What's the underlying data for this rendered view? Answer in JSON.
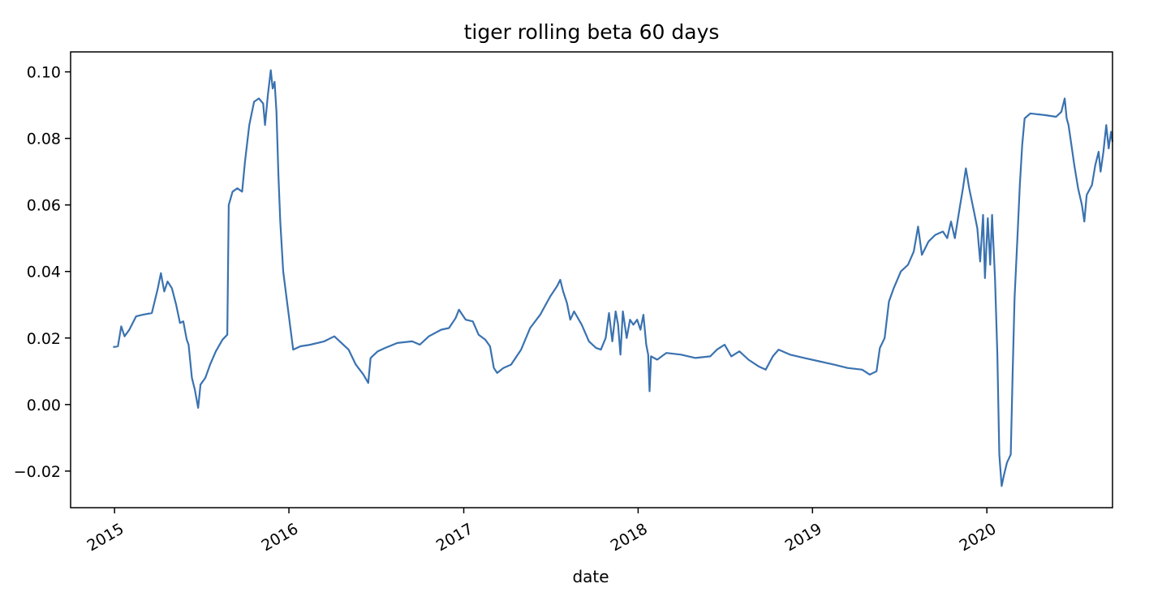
{
  "chart_data": {
    "type": "line",
    "title": "tiger rolling beta 60 days",
    "xlabel": "date",
    "ylabel": "",
    "x_type": "date",
    "xlim": [
      "2014-10-01",
      "2020-09-20"
    ],
    "ylim": [
      -0.031,
      0.106
    ],
    "x_ticks": [
      {
        "date": "2015-01-01",
        "label": "2015"
      },
      {
        "date": "2016-01-01",
        "label": "2016"
      },
      {
        "date": "2017-01-01",
        "label": "2017"
      },
      {
        "date": "2018-01-01",
        "label": "2018"
      },
      {
        "date": "2019-01-01",
        "label": "2019"
      },
      {
        "date": "2020-01-01",
        "label": "2020"
      }
    ],
    "y_ticks": [
      {
        "value": 0.1,
        "label": "0.10"
      },
      {
        "value": 0.08,
        "label": "0.08"
      },
      {
        "value": 0.06,
        "label": "0.06"
      },
      {
        "value": 0.04,
        "label": "0.04"
      },
      {
        "value": 0.02,
        "label": "0.02"
      },
      {
        "value": 0.0,
        "label": "0.00"
      },
      {
        "value": -0.02,
        "label": "−0.02"
      }
    ],
    "grid": false,
    "legend": "none",
    "series": [
      {
        "color": "#3a72b0",
        "points": [
          [
            "2014-12-29",
            0.0173
          ],
          [
            "2015-01-08",
            0.0175
          ],
          [
            "2015-01-15",
            0.0235
          ],
          [
            "2015-01-22",
            0.0205
          ],
          [
            "2015-02-01",
            0.0225
          ],
          [
            "2015-02-15",
            0.0265
          ],
          [
            "2015-03-01",
            0.027
          ],
          [
            "2015-03-20",
            0.0275
          ],
          [
            "2015-04-01",
            0.0345
          ],
          [
            "2015-04-08",
            0.0395
          ],
          [
            "2015-04-15",
            0.034
          ],
          [
            "2015-04-22",
            0.037
          ],
          [
            "2015-05-01",
            0.035
          ],
          [
            "2015-05-10",
            0.03
          ],
          [
            "2015-05-18",
            0.0245
          ],
          [
            "2015-05-25",
            0.025
          ],
          [
            "2015-06-01",
            0.0195
          ],
          [
            "2015-06-05",
            0.018
          ],
          [
            "2015-06-12",
            0.008
          ],
          [
            "2015-06-18",
            0.0045
          ],
          [
            "2015-06-25",
            -0.001
          ],
          [
            "2015-06-30",
            0.006
          ],
          [
            "2015-07-10",
            0.008
          ],
          [
            "2015-07-20",
            0.012
          ],
          [
            "2015-08-01",
            0.016
          ],
          [
            "2015-08-15",
            0.0195
          ],
          [
            "2015-08-25",
            0.021
          ],
          [
            "2015-08-28",
            0.06
          ],
          [
            "2015-09-05",
            0.064
          ],
          [
            "2015-09-15",
            0.065
          ],
          [
            "2015-09-25",
            0.064
          ],
          [
            "2015-10-01",
            0.073
          ],
          [
            "2015-10-10",
            0.084
          ],
          [
            "2015-10-20",
            0.091
          ],
          [
            "2015-10-30",
            0.092
          ],
          [
            "2015-11-08",
            0.0905
          ],
          [
            "2015-11-12",
            0.084
          ],
          [
            "2015-11-18",
            0.093
          ],
          [
            "2015-11-24",
            0.1005
          ],
          [
            "2015-11-28",
            0.095
          ],
          [
            "2015-12-02",
            0.097
          ],
          [
            "2015-12-06",
            0.088
          ],
          [
            "2015-12-10",
            0.069
          ],
          [
            "2015-12-14",
            0.055
          ],
          [
            "2015-12-20",
            0.04
          ],
          [
            "2015-12-28",
            0.031
          ],
          [
            "2016-01-05",
            0.022
          ],
          [
            "2016-01-10",
            0.0165
          ],
          [
            "2016-01-25",
            0.0175
          ],
          [
            "2016-02-15",
            0.018
          ],
          [
            "2016-03-15",
            0.019
          ],
          [
            "2016-04-05",
            0.0205
          ],
          [
            "2016-04-20",
            0.0185
          ],
          [
            "2016-05-05",
            0.0165
          ],
          [
            "2016-05-20",
            0.012
          ],
          [
            "2016-06-05",
            0.009
          ],
          [
            "2016-06-15",
            0.0065
          ],
          [
            "2016-06-20",
            0.014
          ],
          [
            "2016-07-05",
            0.016
          ],
          [
            "2016-07-20",
            0.017
          ],
          [
            "2016-08-15",
            0.0185
          ],
          [
            "2016-09-15",
            0.019
          ],
          [
            "2016-10-01",
            0.018
          ],
          [
            "2016-10-20",
            0.0205
          ],
          [
            "2016-11-15",
            0.0225
          ],
          [
            "2016-12-01",
            0.023
          ],
          [
            "2016-12-15",
            0.026
          ],
          [
            "2016-12-22",
            0.0285
          ],
          [
            "2017-01-05",
            0.0255
          ],
          [
            "2017-01-20",
            0.025
          ],
          [
            "2017-02-01",
            0.021
          ],
          [
            "2017-02-15",
            0.0195
          ],
          [
            "2017-02-25",
            0.0175
          ],
          [
            "2017-03-05",
            0.011
          ],
          [
            "2017-03-12",
            0.0095
          ],
          [
            "2017-03-25",
            0.011
          ],
          [
            "2017-04-10",
            0.012
          ],
          [
            "2017-05-01",
            0.0165
          ],
          [
            "2017-05-20",
            0.023
          ],
          [
            "2017-06-10",
            0.027
          ],
          [
            "2017-07-01",
            0.0325
          ],
          [
            "2017-07-15",
            0.0355
          ],
          [
            "2017-07-22",
            0.0375
          ],
          [
            "2017-07-28",
            0.034
          ],
          [
            "2017-08-05",
            0.0305
          ],
          [
            "2017-08-12",
            0.0255
          ],
          [
            "2017-08-20",
            0.028
          ],
          [
            "2017-09-05",
            0.024
          ],
          [
            "2017-09-20",
            0.019
          ],
          [
            "2017-10-05",
            0.017
          ],
          [
            "2017-10-15",
            0.0165
          ],
          [
            "2017-10-25",
            0.02
          ],
          [
            "2017-11-01",
            0.0275
          ],
          [
            "2017-11-08",
            0.019
          ],
          [
            "2017-11-15",
            0.028
          ],
          [
            "2017-11-20",
            0.024
          ],
          [
            "2017-11-25",
            0.015
          ],
          [
            "2017-11-30",
            0.028
          ],
          [
            "2017-12-08",
            0.02
          ],
          [
            "2017-12-15",
            0.0255
          ],
          [
            "2017-12-22",
            0.024
          ],
          [
            "2017-12-30",
            0.0255
          ],
          [
            "2018-01-06",
            0.0225
          ],
          [
            "2018-01-12",
            0.027
          ],
          [
            "2018-01-18",
            0.018
          ],
          [
            "2018-01-22",
            0.015
          ],
          [
            "2018-01-25",
            0.004
          ],
          [
            "2018-01-28",
            0.0145
          ],
          [
            "2018-02-10",
            0.0135
          ],
          [
            "2018-03-01",
            0.0155
          ],
          [
            "2018-04-01",
            0.015
          ],
          [
            "2018-05-01",
            0.014
          ],
          [
            "2018-06-01",
            0.0145
          ],
          [
            "2018-06-15",
            0.0165
          ],
          [
            "2018-07-01",
            0.018
          ],
          [
            "2018-07-15",
            0.0145
          ],
          [
            "2018-08-01",
            0.016
          ],
          [
            "2018-08-20",
            0.0135
          ],
          [
            "2018-09-10",
            0.0115
          ],
          [
            "2018-09-25",
            0.0105
          ],
          [
            "2018-10-10",
            0.0145
          ],
          [
            "2018-10-22",
            0.0165
          ],
          [
            "2018-11-15",
            0.015
          ],
          [
            "2018-12-15",
            0.014
          ],
          [
            "2019-01-15",
            0.013
          ],
          [
            "2019-02-15",
            0.012
          ],
          [
            "2019-03-15",
            0.011
          ],
          [
            "2019-04-15",
            0.0105
          ],
          [
            "2019-05-01",
            0.009
          ],
          [
            "2019-05-15",
            0.01
          ],
          [
            "2019-05-22",
            0.017
          ],
          [
            "2019-06-01",
            0.02
          ],
          [
            "2019-06-10",
            0.031
          ],
          [
            "2019-06-20",
            0.035
          ],
          [
            "2019-07-05",
            0.04
          ],
          [
            "2019-07-20",
            0.042
          ],
          [
            "2019-08-01",
            0.046
          ],
          [
            "2019-08-10",
            0.0535
          ],
          [
            "2019-08-18",
            0.045
          ],
          [
            "2019-09-01",
            0.049
          ],
          [
            "2019-09-15",
            0.051
          ],
          [
            "2019-10-01",
            0.052
          ],
          [
            "2019-10-10",
            0.05
          ],
          [
            "2019-10-18",
            0.055
          ],
          [
            "2019-10-26",
            0.05
          ],
          [
            "2019-11-05",
            0.059
          ],
          [
            "2019-11-12",
            0.065
          ],
          [
            "2019-11-18",
            0.071
          ],
          [
            "2019-11-25",
            0.065
          ],
          [
            "2019-12-05",
            0.058
          ],
          [
            "2019-12-12",
            0.053
          ],
          [
            "2019-12-18",
            0.043
          ],
          [
            "2019-12-24",
            0.057
          ],
          [
            "2019-12-28",
            0.038
          ],
          [
            "2020-01-03",
            0.056
          ],
          [
            "2020-01-08",
            0.042
          ],
          [
            "2020-01-12",
            0.057
          ],
          [
            "2020-01-18",
            0.038
          ],
          [
            "2020-01-23",
            0.015
          ],
          [
            "2020-01-27",
            -0.015
          ],
          [
            "2020-02-01",
            -0.0245
          ],
          [
            "2020-02-06",
            -0.021
          ],
          [
            "2020-02-12",
            -0.0175
          ],
          [
            "2020-02-20",
            -0.015
          ],
          [
            "2020-02-24",
            0.01
          ],
          [
            "2020-02-28",
            0.032
          ],
          [
            "2020-03-05",
            0.05
          ],
          [
            "2020-03-10",
            0.066
          ],
          [
            "2020-03-15",
            0.078
          ],
          [
            "2020-03-20",
            0.086
          ],
          [
            "2020-04-01",
            0.0875
          ],
          [
            "2020-05-01",
            0.087
          ],
          [
            "2020-05-25",
            0.0865
          ],
          [
            "2020-06-05",
            0.088
          ],
          [
            "2020-06-12",
            0.092
          ],
          [
            "2020-06-16",
            0.086
          ],
          [
            "2020-06-20",
            0.084
          ],
          [
            "2020-06-25",
            0.079
          ],
          [
            "2020-07-02",
            0.072
          ],
          [
            "2020-07-10",
            0.065
          ],
          [
            "2020-07-18",
            0.06
          ],
          [
            "2020-07-23",
            0.055
          ],
          [
            "2020-07-28",
            0.063
          ],
          [
            "2020-08-08",
            0.066
          ],
          [
            "2020-08-15",
            0.072
          ],
          [
            "2020-08-22",
            0.076
          ],
          [
            "2020-08-26",
            0.07
          ],
          [
            "2020-09-01",
            0.076
          ],
          [
            "2020-09-07",
            0.084
          ],
          [
            "2020-09-12",
            0.077
          ],
          [
            "2020-09-17",
            0.082
          ],
          [
            "2020-09-20",
            0.079
          ]
        ]
      }
    ]
  }
}
